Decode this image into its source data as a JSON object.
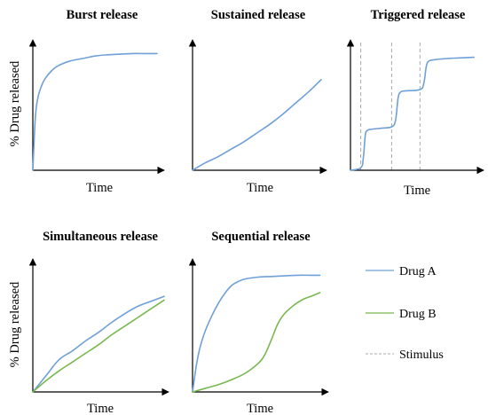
{
  "colors": {
    "drug_a": "#6fa0d8",
    "drug_b": "#79b84f",
    "stimulus": "#a8a8a8",
    "axis": "#000000"
  },
  "legend": {
    "items": [
      {
        "key": "drug_a",
        "label": "Drug A",
        "style": "solid"
      },
      {
        "key": "drug_b",
        "label": "Drug B",
        "style": "solid"
      },
      {
        "key": "stimulus",
        "label": "Stimulus",
        "style": "dashed"
      }
    ],
    "placement": "bottom-right"
  },
  "chart_data": [
    {
      "type": "line",
      "title": "Burst release",
      "xlabel": "Time",
      "ylabel": "% Drug released",
      "xlim": [
        0,
        10
      ],
      "ylim": [
        0,
        100
      ],
      "series": [
        {
          "key": "drug_a",
          "x": [
            0,
            0.2,
            0.4,
            0.7,
            1,
            1.5,
            2,
            3,
            4,
            5,
            6,
            7,
            8,
            9,
            10
          ],
          "y": [
            0,
            42,
            58,
            68,
            74,
            80,
            84,
            88,
            90,
            92,
            93,
            93.5,
            94,
            94,
            94
          ]
        }
      ]
    },
    {
      "type": "line",
      "title": "Sustained release",
      "xlabel": "Time",
      "ylabel": "",
      "xlim": [
        0,
        10
      ],
      "ylim": [
        0,
        100
      ],
      "series": [
        {
          "key": "drug_a",
          "x": [
            0,
            1,
            2,
            3,
            4,
            5,
            6,
            7,
            8,
            9,
            10
          ],
          "y": [
            0,
            6,
            11,
            17,
            23,
            30,
            37,
            45,
            54,
            63,
            73
          ]
        }
      ]
    },
    {
      "type": "line",
      "title": "Triggered release",
      "xlabel": "Time",
      "ylabel": "",
      "xlim": [
        0,
        10
      ],
      "ylim": [
        0,
        100
      ],
      "stimuli": [
        0.8,
        3.2,
        5.4
      ],
      "series": [
        {
          "key": "drug_a",
          "x": [
            0,
            0.8,
            1.0,
            1.15,
            1.3,
            1.6,
            2.5,
            3.2,
            3.5,
            3.7,
            3.9,
            4.3,
            5.4,
            5.7,
            5.9,
            6.1,
            6.5,
            7.5,
            8.5,
            9.6
          ],
          "y": [
            0,
            2,
            10,
            28,
            32,
            33,
            34,
            35,
            40,
            58,
            63,
            64,
            65,
            70,
            84,
            88,
            89,
            90,
            90.5,
            91
          ]
        }
      ]
    },
    {
      "type": "line",
      "title": "Simultaneous release",
      "xlabel": "Time",
      "ylabel": "% Drug released",
      "xlim": [
        0,
        10
      ],
      "ylim": [
        0,
        100
      ],
      "series": [
        {
          "key": "drug_a",
          "x": [
            0,
            1,
            2,
            3,
            4,
            5,
            6,
            7,
            8,
            9,
            10
          ],
          "y": [
            0,
            13,
            26,
            33,
            41,
            48,
            56,
            63,
            69,
            73,
            77
          ]
        },
        {
          "key": "drug_b",
          "x": [
            0,
            1,
            2,
            3,
            4,
            5,
            6,
            7,
            8,
            9,
            10
          ],
          "y": [
            0,
            9,
            17,
            24,
            31,
            38,
            46,
            53,
            60,
            67,
            74
          ]
        }
      ]
    },
    {
      "type": "line",
      "title": "Sequential release",
      "xlabel": "Time",
      "ylabel": "",
      "xlim": [
        0,
        10
      ],
      "ylim": [
        0,
        100
      ],
      "series": [
        {
          "key": "drug_a",
          "x": [
            0,
            0.3,
            0.6,
            1,
            1.5,
            2,
            2.5,
            3,
            3.5,
            4,
            5,
            6,
            7,
            8,
            9,
            9.7
          ],
          "y": [
            0,
            22,
            37,
            50,
            62,
            72,
            80,
            86,
            89,
            91,
            92.5,
            93,
            93.5,
            94,
            94,
            94
          ]
        },
        {
          "key": "drug_b",
          "x": [
            0,
            1,
            2,
            3,
            4,
            5,
            5.5,
            6,
            6.5,
            7,
            7.5,
            8,
            8.5,
            9,
            9.7
          ],
          "y": [
            0,
            3,
            6,
            10,
            15,
            23,
            30,
            42,
            55,
            63,
            68,
            72,
            75,
            77,
            80
          ]
        }
      ]
    }
  ]
}
